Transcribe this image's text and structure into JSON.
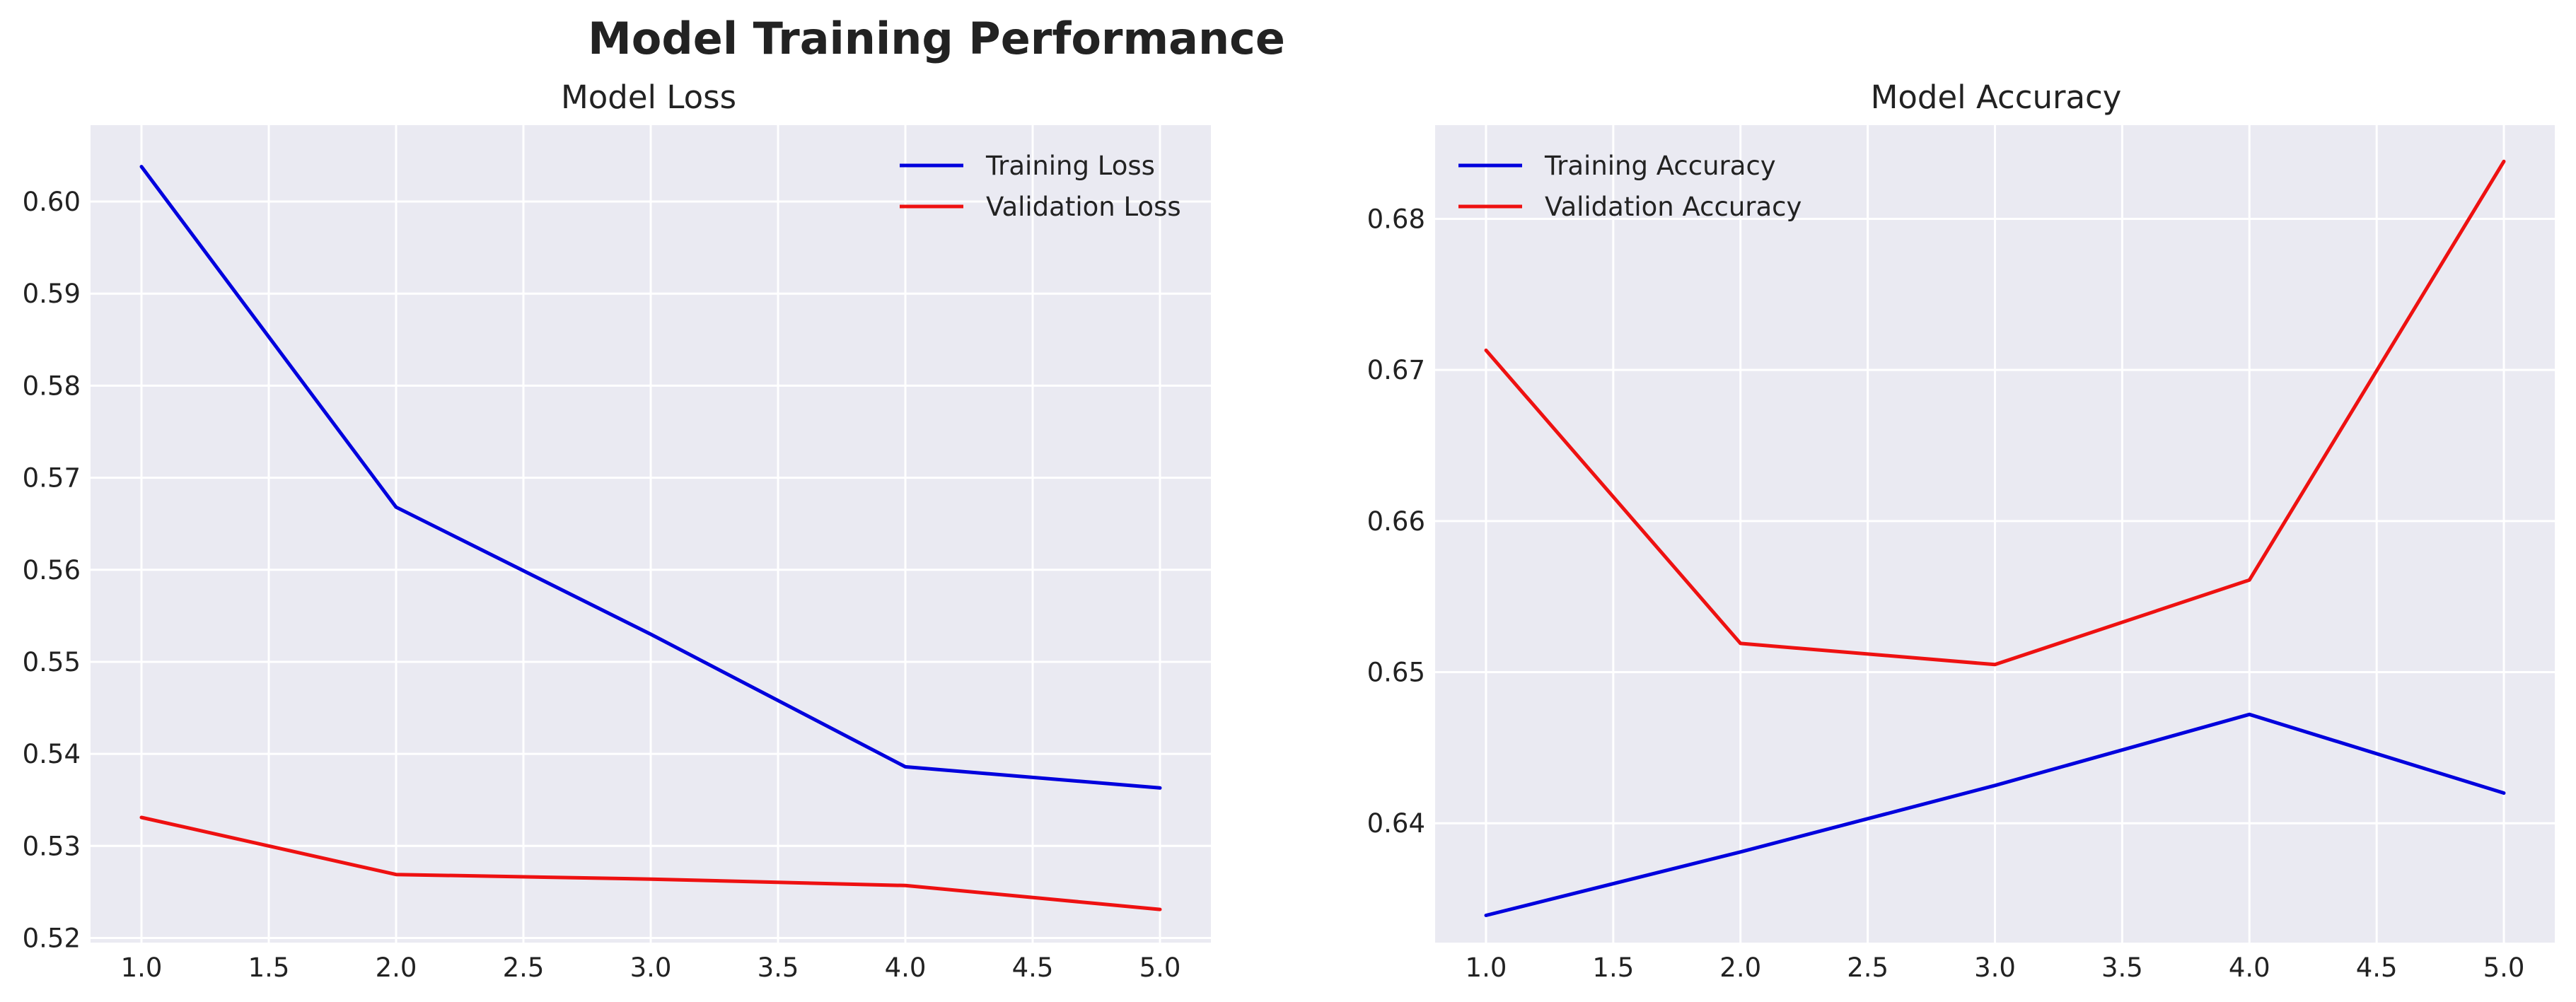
{
  "figure": {
    "suptitle": "Model Training Performance"
  },
  "colors": {
    "background": "#eaeaf2",
    "grid": "#ffffff",
    "training": "#0000dd",
    "validation": "#ee1111"
  },
  "chart_data": [
    {
      "type": "line",
      "title": "Model Loss",
      "xlabel": "",
      "ylabel": "",
      "x": [
        1,
        2,
        3,
        4,
        5
      ],
      "xticks": [
        "1.0",
        "1.5",
        "2.0",
        "2.5",
        "3.0",
        "3.5",
        "4.0",
        "4.5",
        "5.0"
      ],
      "yticks": [
        "0.52",
        "0.53",
        "0.54",
        "0.55",
        "0.56",
        "0.57",
        "0.58",
        "0.59",
        "0.60"
      ],
      "xlim": [
        0.8,
        5.2
      ],
      "ylim": [
        0.5195,
        0.6083
      ],
      "grid": true,
      "legend_position": "top-right",
      "series": [
        {
          "name": "Training Loss",
          "color": "#0000dd",
          "values": [
            0.6038,
            0.5668,
            0.553,
            0.5386,
            0.5363
          ]
        },
        {
          "name": "Validation Loss",
          "color": "#ee1111",
          "values": [
            0.5331,
            0.5269,
            0.5264,
            0.5257,
            0.5231
          ]
        }
      ]
    },
    {
      "type": "line",
      "title": "Model Accuracy",
      "xlabel": "",
      "ylabel": "",
      "x": [
        1,
        2,
        3,
        4,
        5
      ],
      "xticks": [
        "1.0",
        "1.5",
        "2.0",
        "2.5",
        "3.0",
        "3.5",
        "4.0",
        "4.5",
        "5.0"
      ],
      "yticks": [
        "0.64",
        "0.65",
        "0.66",
        "0.67",
        "0.68"
      ],
      "xlim": [
        0.8,
        5.2
      ],
      "ylim": [
        0.6321,
        0.6862
      ],
      "grid": true,
      "legend_position": "top-left",
      "series": [
        {
          "name": "Training Accuracy",
          "color": "#0000dd",
          "values": [
            0.6339,
            0.6381,
            0.6425,
            0.6472,
            0.642
          ]
        },
        {
          "name": "Validation Accuracy",
          "color": "#ee1111",
          "values": [
            0.6713,
            0.6519,
            0.6505,
            0.6561,
            0.6838
          ]
        }
      ]
    }
  ]
}
